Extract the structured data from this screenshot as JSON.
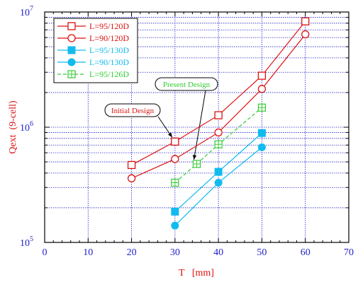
{
  "chart_data": {
    "type": "line",
    "xlabel": "T   [mm]",
    "ylabel": "Qext  (9-cell)",
    "xlim": [
      0,
      70
    ],
    "ylim": [
      100000,
      10000000
    ],
    "y_scale": "log",
    "grid": true,
    "legend_position": "top-left",
    "x_ticks": [
      "0",
      "10",
      "20",
      "30",
      "40",
      "50",
      "60",
      "70"
    ],
    "y_ticks": [
      {
        "base": "10",
        "exp": "5"
      },
      {
        "base": "10",
        "exp": "6"
      },
      {
        "base": "10",
        "exp": "7"
      }
    ],
    "series": [
      {
        "name": "L=95/120D",
        "color": "#dd1111",
        "marker": "square-open",
        "dash": false,
        "x": [
          20,
          30,
          40,
          50,
          60
        ],
        "y": [
          470000,
          750000,
          1270000,
          2800000,
          8300000
        ]
      },
      {
        "name": "L=90/120D",
        "color": "#dd1111",
        "marker": "circle-open",
        "dash": false,
        "x": [
          20,
          30,
          40,
          50,
          60
        ],
        "y": [
          360000,
          530000,
          900000,
          2150000,
          6400000
        ]
      },
      {
        "name": "L=95/130D",
        "color": "#11bbee",
        "marker": "square-filled",
        "dash": false,
        "x": [
          30,
          40,
          50
        ],
        "y": [
          185000,
          410000,
          890000
        ]
      },
      {
        "name": "L=90/130D",
        "color": "#11bbee",
        "marker": "circle-filled",
        "dash": false,
        "x": [
          30,
          40,
          50
        ],
        "y": [
          140000,
          330000,
          670000
        ]
      },
      {
        "name": "L=95/126D",
        "color": "#33cc33",
        "marker": "square-cross",
        "dash": true,
        "x": [
          30,
          35,
          40,
          50
        ],
        "y": [
          330000,
          480000,
          710000,
          1480000
        ]
      }
    ],
    "annotations": [
      {
        "text": "Initial Design",
        "color": "#dd1111",
        "target_x": 30,
        "target_y": 750000
      },
      {
        "text": "Present Design",
        "color": "#33cc33",
        "target_x": 35,
        "target_y": 480000
      }
    ]
  }
}
